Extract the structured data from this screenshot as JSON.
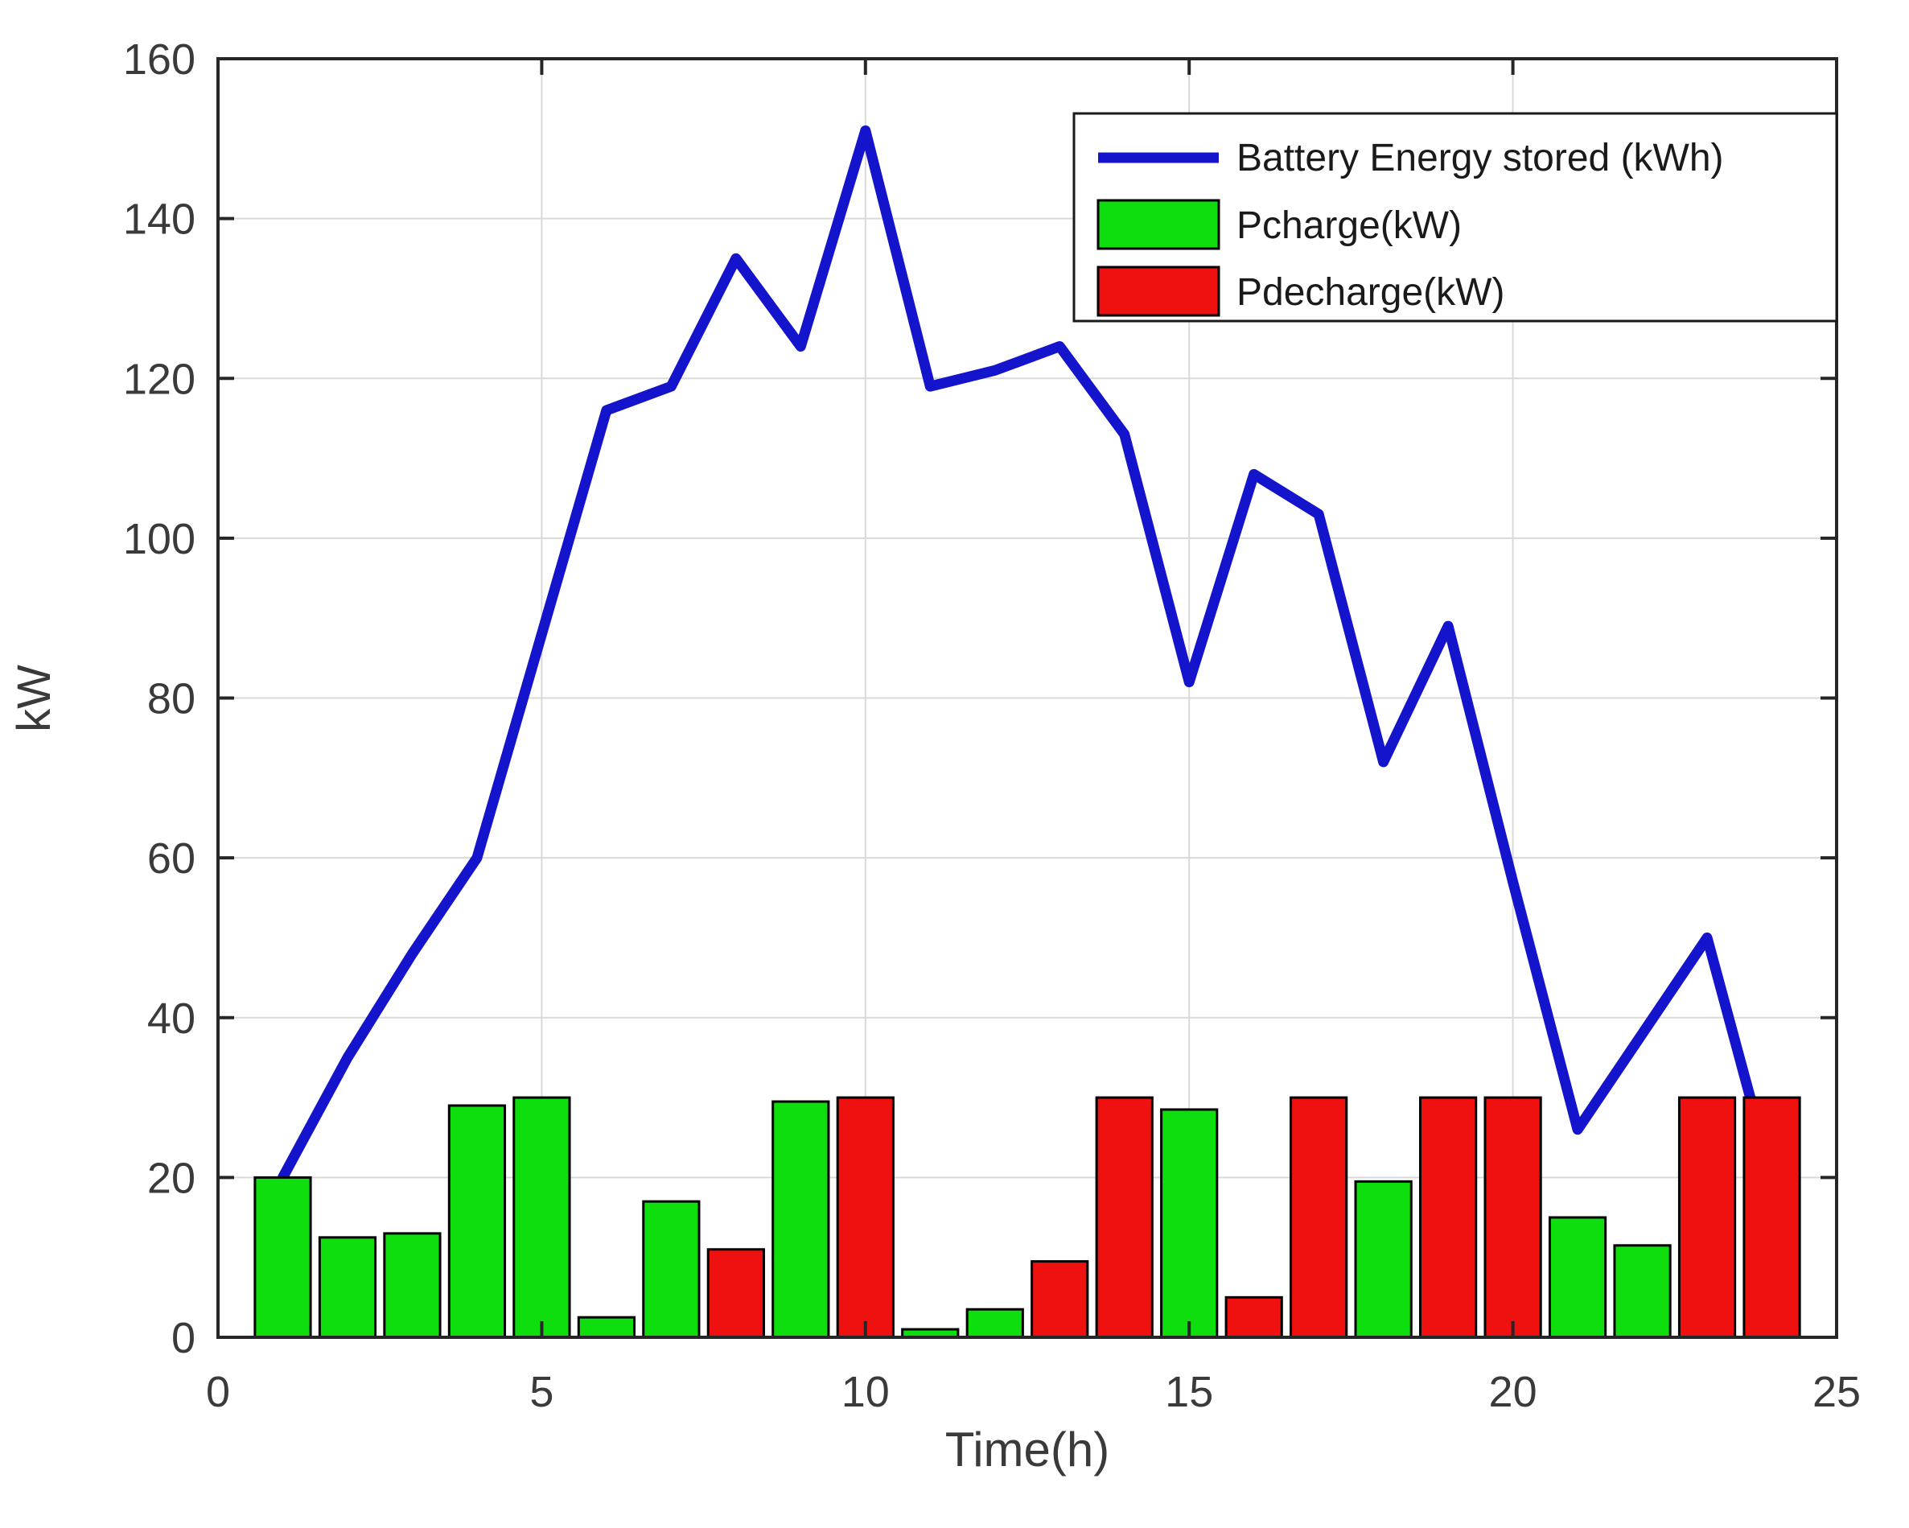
{
  "figure": {
    "background": "#ffffff",
    "axes": {
      "xlabel": "Time(h)",
      "ylabel": "kW",
      "x_ticks": [
        0,
        5,
        10,
        15,
        20,
        25
      ],
      "y_ticks": [
        0,
        20,
        40,
        60,
        80,
        100,
        120,
        140,
        160
      ]
    },
    "colors": {
      "gridline": "#d9d9d9",
      "spine": "#262626",
      "tick_label": "#3a3a3a",
      "axis_label": "#3a3a3a",
      "legend_border": "#1a1a1a",
      "legend_text": "#1a1a1a",
      "bar_edge": "#000000"
    }
  },
  "chart_data": {
    "type": "line+bar",
    "title": "",
    "xlabel": "Time(h)",
    "ylabel": "kW",
    "xlim": [
      0,
      25
    ],
    "ylim": [
      0,
      160
    ],
    "grid": true,
    "legend_position": "top-right",
    "x": [
      1,
      2,
      3,
      4,
      5,
      6,
      7,
      8,
      9,
      10,
      11,
      12,
      13,
      14,
      15,
      16,
      17,
      18,
      19,
      20,
      21,
      22,
      23,
      24
    ],
    "bar_width": 0.86,
    "series": [
      {
        "name": "Battery Energy stored (kWh)",
        "type": "line",
        "color": "#1414cc",
        "values": [
          20,
          35,
          48,
          60,
          88,
          116,
          119,
          135,
          124,
          151,
          119,
          121,
          124,
          113,
          82,
          108,
          103,
          72,
          89,
          57,
          26,
          38,
          50,
          20
        ]
      },
      {
        "name": "Pcharge(kW)",
        "type": "bar",
        "color": "#0ede0e",
        "values": [
          20,
          12.5,
          13,
          29,
          30,
          2.5,
          17,
          0,
          29.5,
          0,
          1,
          3.5,
          0,
          0,
          28.5,
          0,
          0,
          19.5,
          0,
          0,
          15,
          11.5,
          0,
          0
        ]
      },
      {
        "name": "Pdecharge(kW)",
        "type": "bar",
        "color": "#ef1010",
        "values": [
          0,
          0,
          0,
          0,
          0,
          0,
          0,
          11,
          0,
          30,
          0,
          0,
          9.5,
          30,
          0,
          5,
          30,
          0,
          30,
          30,
          0,
          0,
          30,
          30
        ]
      }
    ]
  }
}
